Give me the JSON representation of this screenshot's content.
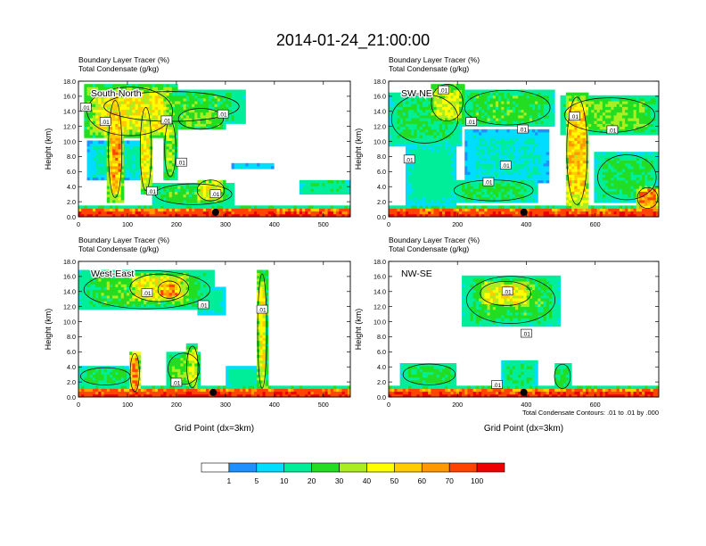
{
  "title": "2014-01-24_21:00:00",
  "colorbar": {
    "colors": [
      "#ffffff",
      "#1e90ff",
      "#00ddff",
      "#00ee99",
      "#22dd22",
      "#aaee22",
      "#ffff00",
      "#ffcc00",
      "#ff9900",
      "#ff4400",
      "#ee0000"
    ],
    "labels": [
      "1",
      "5",
      "10",
      "20",
      "30",
      "40",
      "50",
      "60",
      "70",
      "100"
    ]
  },
  "contour_note": "Total Condensate Contours: .01 to .01 by .000",
  "chart_data": [
    {
      "type": "heatmap",
      "panel": "South-North",
      "label1": "Boundary Layer Tracer   (%)",
      "label2": "Total Condensate   (g/kg)",
      "ylabel": "Height (km)",
      "xlabel": "",
      "xlim": [
        0,
        555
      ],
      "ylim": [
        0,
        18
      ],
      "xticks": [
        "0",
        "100",
        "200",
        "300",
        "400",
        "500"
      ],
      "xtick_values": [
        0,
        100,
        200,
        300,
        400,
        500
      ],
      "yticks": [
        "0.0",
        "2.0",
        "4.0",
        "6.0",
        "8.0",
        "10.0",
        "12.0",
        "14.0",
        "16.0",
        "18.0"
      ],
      "marker_x": 280,
      "contour_labels": [
        ".01",
        ".01",
        ".01",
        ".01",
        ".01",
        ".01",
        ".01"
      ],
      "contour_label_pos": [
        [
          15,
          14.5
        ],
        [
          180,
          12.8
        ],
        [
          295,
          13.6
        ],
        [
          55,
          12.6
        ],
        [
          210,
          7.2
        ],
        [
          280,
          3.0
        ],
        [
          150,
          3.4
        ]
      ],
      "blobs": [
        {
          "x0": 10,
          "x1": 200,
          "z0": 10.5,
          "z1": 17.5,
          "v": 45
        },
        {
          "x0": 40,
          "x1": 340,
          "z0": 12.5,
          "z1": 16.8,
          "v": 25
        },
        {
          "x0": 200,
          "x1": 300,
          "z0": 11.5,
          "z1": 14.5,
          "v": 30
        },
        {
          "x0": 60,
          "x1": 90,
          "z0": 2.0,
          "z1": 16.0,
          "v": 60
        },
        {
          "x0": 125,
          "x1": 150,
          "z0": 3.0,
          "z1": 15.0,
          "v": 45
        },
        {
          "x0": 175,
          "x1": 200,
          "z0": 5.0,
          "z1": 13.0,
          "v": 35
        },
        {
          "x0": 20,
          "x1": 140,
          "z0": 5.0,
          "z1": 10.0,
          "v": 12
        },
        {
          "x0": 150,
          "x1": 320,
          "z0": 1.5,
          "z1": 4.5,
          "v": 25
        },
        {
          "x0": 240,
          "x1": 300,
          "z0": 2.0,
          "z1": 5.0,
          "v": 45
        },
        {
          "x0": 450,
          "x1": 555,
          "z0": 3.0,
          "z1": 5.0,
          "v": 18
        },
        {
          "x0": 310,
          "x1": 400,
          "z0": 6.2,
          "z1": 7.0,
          "v": 8
        }
      ]
    },
    {
      "type": "heatmap",
      "panel": "SW-NE",
      "label1": "Boundary Layer Tracer   (%)",
      "label2": "Total Condensate   (g/kg)",
      "ylabel": "Height (km)",
      "xlabel": "",
      "xlim": [
        0,
        785
      ],
      "ylim": [
        0,
        18
      ],
      "xticks": [
        "0",
        "200",
        "400",
        "600"
      ],
      "xtick_values": [
        0,
        200,
        400,
        600
      ],
      "yticks": [
        "0.0",
        "2.0",
        "4.0",
        "6.0",
        "8.0",
        "10.0",
        "12.0",
        "14.0",
        "16.0",
        "18.0"
      ],
      "marker_x": 393,
      "contour_labels": [
        ".01",
        ".01",
        ".01",
        ".01",
        ".01",
        ".01",
        ".01",
        ".01"
      ],
      "contour_label_pos": [
        [
          160,
          16.8
        ],
        [
          540,
          13.3
        ],
        [
          240,
          12.6
        ],
        [
          390,
          11.6
        ],
        [
          650,
          11.5
        ],
        [
          60,
          7.6
        ],
        [
          340,
          6.8
        ],
        [
          290,
          4.6
        ]
      ],
      "blobs": [
        {
          "x0": 0,
          "x1": 210,
          "z0": 9.5,
          "z1": 16.5,
          "v": 20
        },
        {
          "x0": 120,
          "x1": 220,
          "z0": 12.5,
          "z1": 17.8,
          "v": 40
        },
        {
          "x0": 210,
          "x1": 480,
          "z0": 12.0,
          "z1": 17.0,
          "v": 25
        },
        {
          "x0": 500,
          "x1": 785,
          "z0": 11.0,
          "z1": 16.0,
          "v": 30
        },
        {
          "x0": 515,
          "x1": 580,
          "z0": 1.0,
          "z1": 16.5,
          "v": 55
        },
        {
          "x0": 50,
          "x1": 200,
          "z0": 1.5,
          "z1": 10.0,
          "v": 14
        },
        {
          "x0": 220,
          "x1": 470,
          "z0": 4.5,
          "z1": 11.5,
          "v": 10
        },
        {
          "x0": 180,
          "x1": 430,
          "z0": 2.0,
          "z1": 5.0,
          "v": 22
        },
        {
          "x0": 600,
          "x1": 785,
          "z0": 2.0,
          "z1": 8.5,
          "v": 22
        },
        {
          "x0": 720,
          "x1": 785,
          "z0": 1.0,
          "z1": 4.0,
          "v": 65
        }
      ]
    },
    {
      "type": "heatmap",
      "panel": "West-East",
      "label1": "Boundary Layer Tracer   (%)",
      "label2": "Total Condensate   (g/kg)",
      "ylabel": "Height (km)",
      "xlabel": "Grid Point (dx=3km)",
      "xlim": [
        0,
        555
      ],
      "ylim": [
        0,
        18
      ],
      "xticks": [
        "0",
        "100",
        "200",
        "300",
        "400",
        "500"
      ],
      "xtick_values": [
        0,
        100,
        200,
        300,
        400,
        500
      ],
      "yticks": [
        "0.0",
        "2.0",
        "4.0",
        "6.0",
        "8.0",
        "10.0",
        "12.0",
        "14.0",
        "16.0",
        "18.0"
      ],
      "marker_x": 275,
      "contour_labels": [
        ".01",
        ".01",
        ".01",
        ".01"
      ],
      "contour_label_pos": [
        [
          140,
          13.8
        ],
        [
          255,
          12.2
        ],
        [
          375,
          11.6
        ],
        [
          200,
          1.9
        ]
      ],
      "blobs": [
        {
          "x0": 0,
          "x1": 280,
          "z0": 11.5,
          "z1": 17.0,
          "v": 25
        },
        {
          "x0": 100,
          "x1": 230,
          "z0": 12.5,
          "z1": 16.5,
          "v": 45
        },
        {
          "x0": 160,
          "x1": 210,
          "z0": 13.0,
          "z1": 15.5,
          "v": 62
        },
        {
          "x0": 240,
          "x1": 300,
          "z0": 11.0,
          "z1": 14.5,
          "v": 14
        },
        {
          "x0": 365,
          "x1": 385,
          "z0": 0.5,
          "z1": 17.0,
          "v": 45
        },
        {
          "x0": 0,
          "x1": 110,
          "z0": 1.5,
          "z1": 4.0,
          "v": 22
        },
        {
          "x0": 105,
          "x1": 125,
          "z0": 0.5,
          "z1": 6.0,
          "v": 65
        },
        {
          "x0": 180,
          "x1": 250,
          "z0": 1.5,
          "z1": 6.0,
          "v": 28
        },
        {
          "x0": 220,
          "x1": 245,
          "z0": 1.0,
          "z1": 7.0,
          "v": 40
        },
        {
          "x0": 300,
          "x1": 370,
          "z0": 1.0,
          "z1": 4.0,
          "v": 14
        }
      ]
    },
    {
      "type": "heatmap",
      "panel": "NW-SE",
      "label1": "Boundary Layer Tracer   (%)",
      "label2": "Total Condensate   (g/kg)",
      "ylabel": "Height (km)",
      "xlabel": "Grid Point (dx=3km)",
      "xlim": [
        0,
        785
      ],
      "ylim": [
        0,
        18
      ],
      "xticks": [
        "0",
        "200",
        "400",
        "600"
      ],
      "xtick_values": [
        0,
        200,
        400,
        600
      ],
      "yticks": [
        "0.0",
        "2.0",
        "4.0",
        "6.0",
        "8.0",
        "10.0",
        "12.0",
        "14.0",
        "16.0",
        "18.0"
      ],
      "marker_x": 393,
      "contour_labels": [
        ".01",
        ".01",
        ".01"
      ],
      "contour_label_pos": [
        [
          345,
          14.0
        ],
        [
          400,
          8.4
        ],
        [
          315,
          1.6
        ]
      ],
      "blobs": [
        {
          "x0": 215,
          "x1": 495,
          "z0": 9.5,
          "z1": 16.3,
          "v": 25
        },
        {
          "x0": 260,
          "x1": 420,
          "z0": 12.0,
          "z1": 15.5,
          "v": 45
        },
        {
          "x0": 35,
          "x1": 200,
          "z0": 1.5,
          "z1": 4.5,
          "v": 22
        },
        {
          "x0": 330,
          "x1": 430,
          "z0": 1.0,
          "z1": 5.0,
          "v": 18
        },
        {
          "x0": 480,
          "x1": 530,
          "z0": 1.0,
          "z1": 4.5,
          "v": 22
        }
      ]
    }
  ]
}
